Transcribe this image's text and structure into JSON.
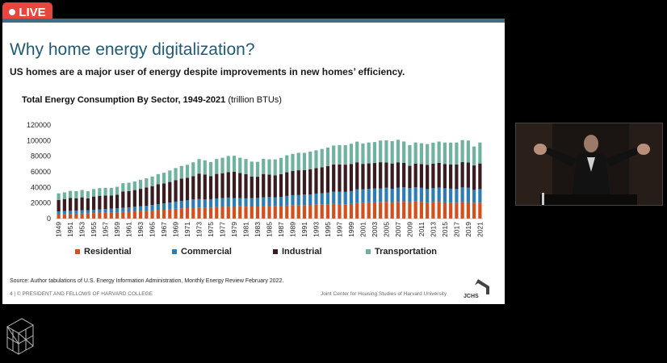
{
  "live_badge": {
    "label": "LIVE",
    "color": "#e8453c"
  },
  "slide": {
    "title": "Why home energy digitalization?",
    "subtitle": "US homes are a major user of energy despite improvements in new homes’ efficiency.",
    "chart_title_bold": "Total Energy Consumption By Sector, 1949-2021",
    "chart_title_unit": "(trillion BTUs)",
    "source": "Source: Author tabulations of U.S. Energy Information Administration, Monthly Energy Review February 2022.",
    "footer_left": "4 | © PRESIDENT AND FELLOWS OF HARVARD COLLEGE",
    "footer_right": "Joint Center for Housing Studies of Harvard University",
    "logo_text": "JCHS"
  },
  "chart_data": {
    "type": "bar",
    "stacked": true,
    "ylim": [
      0,
      120000
    ],
    "yticks": [
      "0",
      "20000",
      "40000",
      "60000",
      "80000",
      "100000",
      "120000"
    ],
    "grid": false,
    "legend_position": "bottom",
    "categories": [
      1949,
      1950,
      1951,
      1952,
      1953,
      1954,
      1955,
      1956,
      1957,
      1958,
      1959,
      1960,
      1961,
      1962,
      1963,
      1964,
      1965,
      1966,
      1967,
      1968,
      1969,
      1970,
      1971,
      1972,
      1973,
      1974,
      1975,
      1976,
      1977,
      1978,
      1979,
      1980,
      1981,
      1982,
      1983,
      1984,
      1985,
      1986,
      1987,
      1988,
      1989,
      1990,
      1991,
      1992,
      1993,
      1994,
      1995,
      1996,
      1997,
      1998,
      1999,
      2000,
      2001,
      2002,
      2003,
      2004,
      2005,
      2006,
      2007,
      2008,
      2009,
      2010,
      2011,
      2012,
      2013,
      2014,
      2015,
      2016,
      2017,
      2018,
      2019,
      2020,
      2021
    ],
    "series": [
      {
        "name": "Residential",
        "color": "#d34f1c",
        "values": [
          5600,
          5900,
          6100,
          6300,
          6400,
          6600,
          7000,
          7300,
          7500,
          7900,
          8200,
          8500,
          8800,
          9200,
          9500,
          9900,
          10400,
          10900,
          11400,
          12000,
          12600,
          13100,
          13400,
          14000,
          14200,
          14100,
          14300,
          14900,
          15000,
          15400,
          15000,
          15800,
          15400,
          15500,
          15500,
          16000,
          16100,
          15800,
          16000,
          16700,
          17200,
          16900,
          17200,
          17100,
          17900,
          17900,
          18300,
          19000,
          18700,
          18400,
          18900,
          20400,
          20400,
          20800,
          21100,
          21000,
          21600,
          20600,
          21500,
          21600,
          21100,
          22000,
          21500,
          20500,
          21100,
          21600,
          20800,
          20300,
          19900,
          21300,
          21100,
          20600,
          20500
        ]
      },
      {
        "name": "Commercial",
        "color": "#2d7db3",
        "values": [
          3700,
          3900,
          4000,
          4100,
          4200,
          4200,
          4400,
          4600,
          4700,
          4900,
          5000,
          5500,
          5700,
          6000,
          6300,
          6600,
          7000,
          7500,
          8000,
          8600,
          9200,
          9700,
          10100,
          10600,
          10900,
          10700,
          10600,
          11000,
          11300,
          11600,
          11300,
          10600,
          10600,
          10800,
          11000,
          11300,
          11500,
          11600,
          11900,
          12400,
          12900,
          13300,
          13600,
          13700,
          14200,
          14500,
          15000,
          15400,
          15700,
          15900,
          16400,
          17200,
          17100,
          17400,
          17600,
          17800,
          18000,
          17700,
          18300,
          18500,
          18200,
          18100,
          18000,
          17400,
          17900,
          18300,
          18100,
          18100,
          18000,
          18700,
          18500,
          16300,
          17400
        ]
      },
      {
        "name": "Industrial",
        "color": "#3a1b1f",
        "values": [
          14700,
          15300,
          16500,
          15700,
          16700,
          15200,
          16900,
          17400,
          17400,
          16700,
          17400,
          20800,
          20700,
          21400,
          22400,
          23300,
          24200,
          25600,
          25700,
          26400,
          27600,
          28600,
          28800,
          29900,
          32600,
          31800,
          29400,
          31400,
          31900,
          32700,
          33800,
          32000,
          30900,
          27700,
          27200,
          29900,
          28900,
          28200,
          29100,
          30300,
          30900,
          31800,
          31400,
          32600,
          32600,
          33400,
          34000,
          34900,
          35100,
          34900,
          34800,
          34600,
          32700,
          32600,
          32600,
          33500,
          32400,
          32400,
          32400,
          31300,
          28400,
          30500,
          30500,
          30900,
          31400,
          31600,
          31200,
          31100,
          31600,
          32400,
          32300,
          31300,
          32800
        ]
      },
      {
        "name": "Transportation",
        "color": "#6fb2a0",
        "values": [
          8400,
          8500,
          9000,
          9100,
          9400,
          9100,
          9600,
          9800,
          9900,
          9900,
          10200,
          10600,
          10800,
          11100,
          11600,
          11900,
          12400,
          13100,
          13700,
          14700,
          15400,
          16100,
          16700,
          17700,
          18600,
          18100,
          18200,
          19100,
          19800,
          20600,
          20500,
          19700,
          19500,
          19100,
          19100,
          19500,
          19500,
          20300,
          20900,
          21800,
          22000,
          22400,
          22100,
          22500,
          22900,
          23500,
          23800,
          24400,
          24800,
          25100,
          25900,
          26500,
          26200,
          26800,
          26900,
          27800,
          28300,
          28700,
          28900,
          27500,
          26600,
          27000,
          26700,
          26800,
          27000,
          27300,
          27500,
          28000,
          28100,
          28300,
          28200,
          24300,
          26900
        ]
      }
    ]
  },
  "speaker_video": {
    "label": "speaker camera"
  }
}
